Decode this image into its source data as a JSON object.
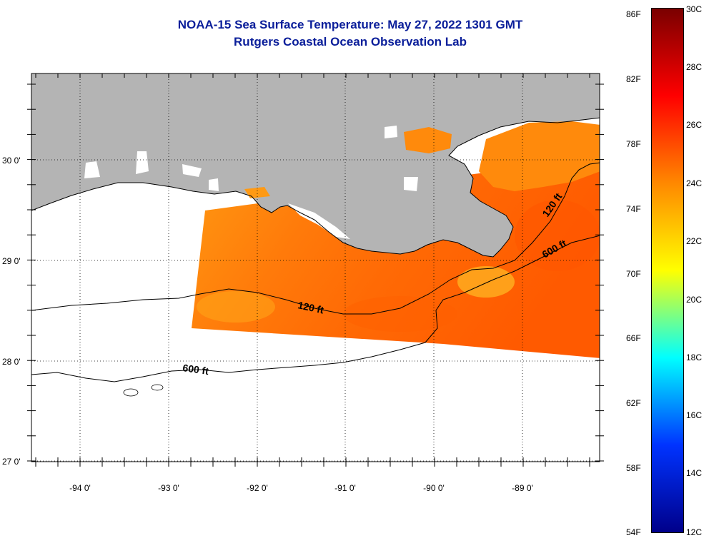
{
  "title": {
    "line1": "NOAA-15 Sea Surface Temperature:  May 27, 2022 1301 GMT",
    "line2": "Rutgers Coastal Ocean Observation Lab"
  },
  "map": {
    "lon_ticks": [
      "-94 0'",
      "-93 0'",
      "-92 0'",
      "-91 0'",
      "-90 0'",
      "-89 0'"
    ],
    "lat_ticks": [
      "30 0'",
      "29 0'",
      "28 0'",
      "27 0'"
    ],
    "contour_labels": [
      "120 ft",
      "600 ft",
      "120 ft",
      "600 ft"
    ],
    "colors": {
      "land": "#b4b4b4",
      "no_data": "#ffffff"
    }
  },
  "colorbar": {
    "f_labels": [
      "86F",
      "82F",
      "78F",
      "74F",
      "70F",
      "66F",
      "62F",
      "58F",
      "54F"
    ],
    "c_labels": [
      "30C",
      "28C",
      "26C",
      "24C",
      "22C",
      "20C",
      "18C",
      "16C",
      "14C",
      "12C"
    ],
    "colors": [
      "#7a0000",
      "#ff0000",
      "#ff8800",
      "#ffff00",
      "#00ffff",
      "#0033ff",
      "#00008a"
    ]
  }
}
